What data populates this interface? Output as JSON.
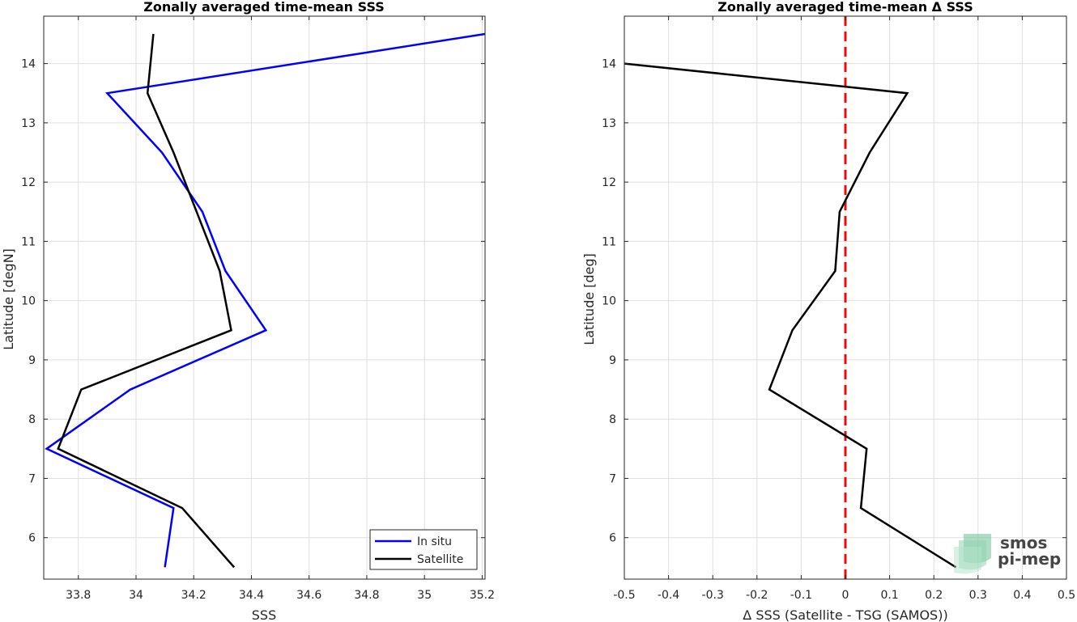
{
  "chart_data": [
    {
      "type": "line",
      "title": "Zonally averaged time-mean SSS",
      "xlabel": "SSS",
      "ylabel": "Latitude [degN]",
      "xlim": [
        33.68,
        35.21
      ],
      "ylim": [
        5.3,
        14.8
      ],
      "xticks": [
        "33.8",
        "34",
        "34.2",
        "34.4",
        "34.6",
        "34.8",
        "35",
        "35.2"
      ],
      "yticks": [
        "6",
        "7",
        "8",
        "9",
        "10",
        "11",
        "12",
        "13",
        "14"
      ],
      "grid": true,
      "legend_position": "bottom-right",
      "series": [
        {
          "name": "In situ",
          "color": "#0000ff",
          "x": [
            34.1,
            34.13,
            33.69,
            33.98,
            34.45,
            34.31,
            34.23,
            34.09,
            33.9,
            35.21
          ],
          "y": [
            5.5,
            6.5,
            7.5,
            8.5,
            9.5,
            10.5,
            11.5,
            12.5,
            13.5,
            14.5
          ]
        },
        {
          "name": "Satellite",
          "color": "#000000",
          "x": [
            34.34,
            34.16,
            33.73,
            33.81,
            34.33,
            34.29,
            34.21,
            34.13,
            34.04,
            34.06
          ],
          "y": [
            5.5,
            6.5,
            7.5,
            8.5,
            9.5,
            10.5,
            11.5,
            12.5,
            13.5,
            14.5
          ]
        }
      ]
    },
    {
      "type": "line",
      "title": "Zonally averaged time-mean Δ SSS",
      "xlabel": "Δ SSS (Satellite - TSG (SAMOS))",
      "ylabel": "Latitude [deg]",
      "xlim": [
        -0.5,
        0.5
      ],
      "ylim": [
        5.3,
        14.8
      ],
      "xticks": [
        "-0.5",
        "-0.4",
        "-0.3",
        "-0.2",
        "-0.1",
        "0",
        "0.1",
        "0.2",
        "0.3",
        "0.4",
        "0.5"
      ],
      "yticks": [
        "6",
        "7",
        "8",
        "9",
        "10",
        "11",
        "12",
        "13",
        "14"
      ],
      "grid": true,
      "reference_line": {
        "x": 0,
        "color": "#e01010",
        "style": "dashed"
      },
      "series": [
        {
          "color": "#000000",
          "x": [
            0.25,
            0.035,
            0.048,
            -0.172,
            -0.12,
            -0.023,
            -0.013,
            0.055,
            0.14,
            -0.5
          ],
          "y": [
            5.5,
            6.5,
            7.5,
            8.5,
            9.5,
            10.5,
            11.5,
            12.5,
            13.5,
            14.0
          ]
        }
      ]
    }
  ],
  "watermark": {
    "line1": "smos",
    "line2": "pi-mep",
    "color": "#6cbf95"
  }
}
